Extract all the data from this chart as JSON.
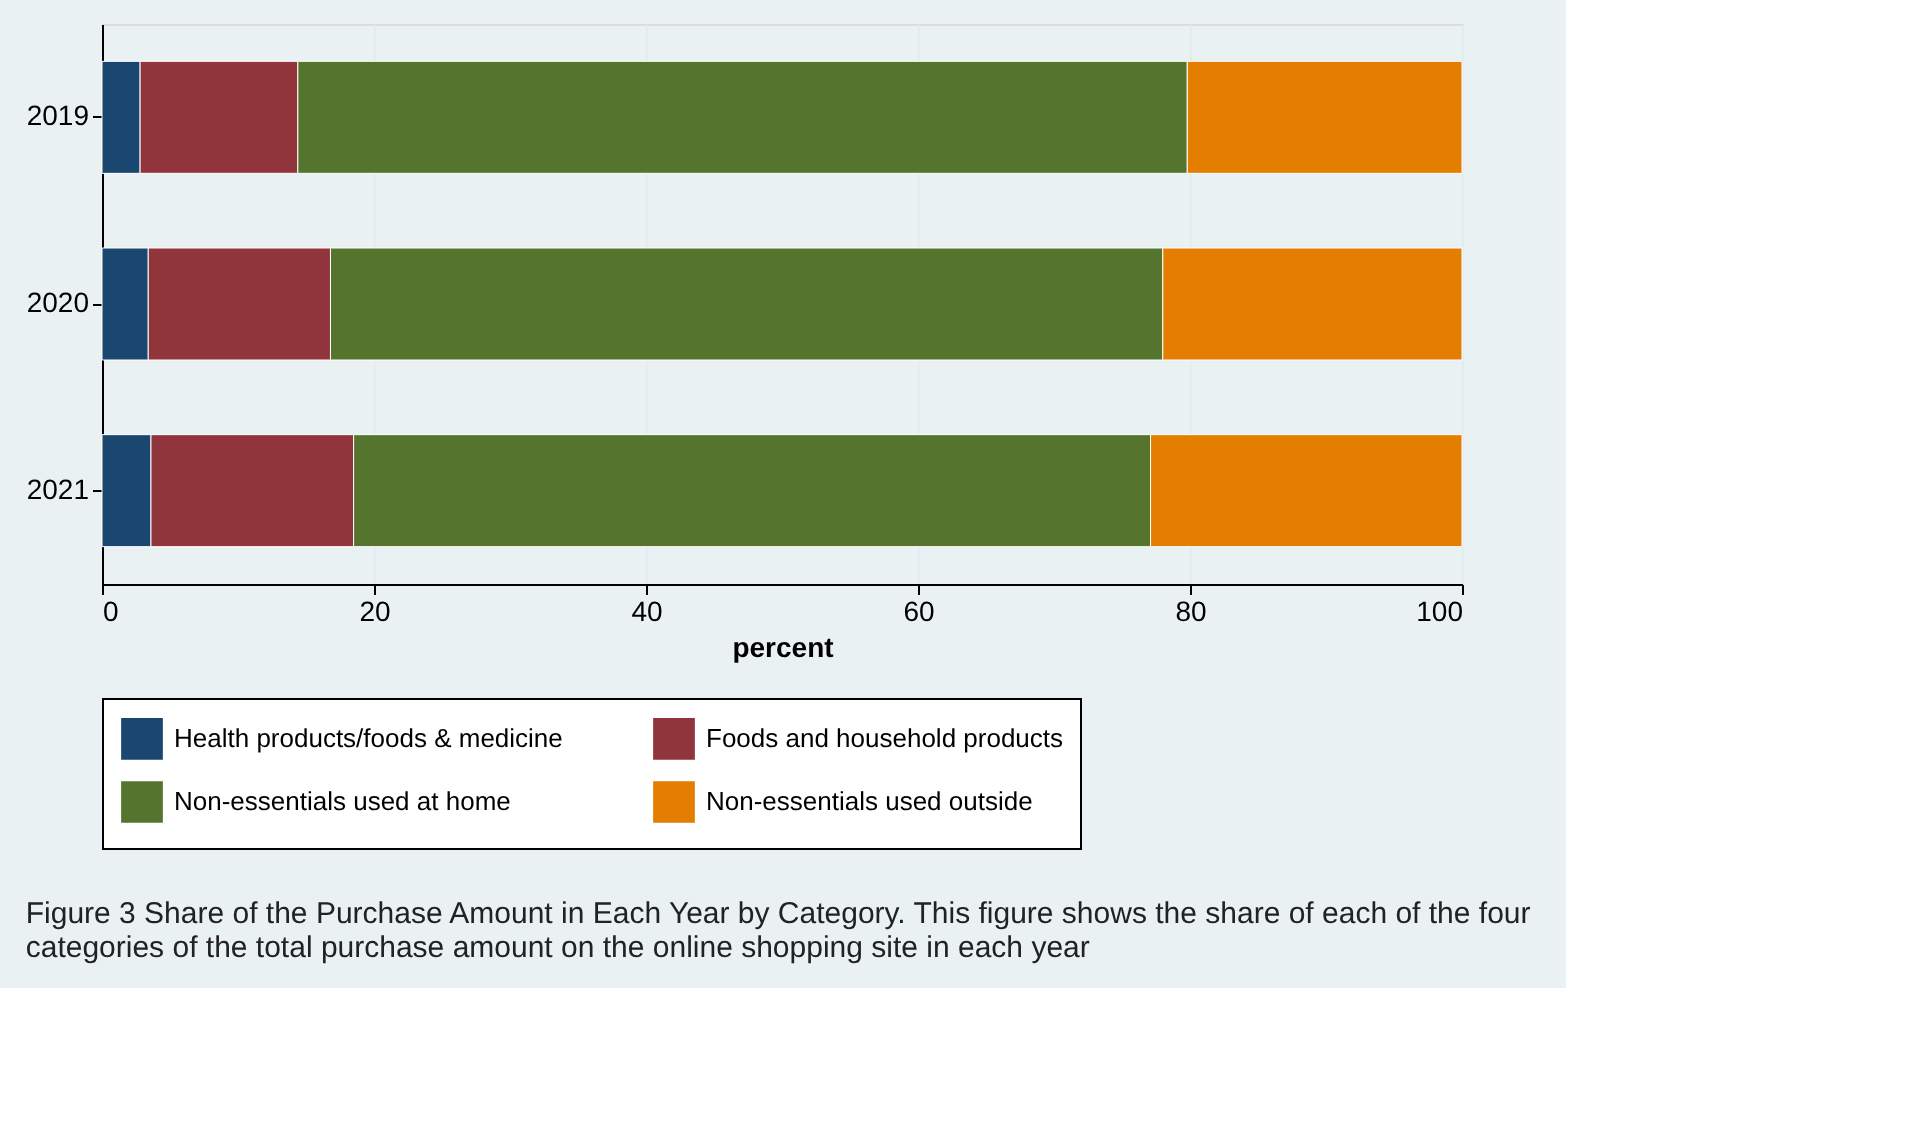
{
  "chart_data": {
    "type": "bar",
    "orientation": "horizontal",
    "stacked": true,
    "categories": [
      "2019",
      "2020",
      "2021"
    ],
    "series": [
      {
        "name": "Health products/foods & medicine",
        "color": "#1a476f",
        "values": [
          2.8,
          3.4,
          3.6
        ]
      },
      {
        "name": "Foods and household products",
        "color": "#90353b",
        "values": [
          11.6,
          13.4,
          14.9
        ]
      },
      {
        "name": "Non-essentials used at home",
        "color": "#55752f",
        "values": [
          65.4,
          61.2,
          58.6
        ]
      },
      {
        "name": "Non-essentials used outside",
        "color": "#e37e00",
        "values": [
          20.2,
          22.0,
          22.9
        ]
      }
    ],
    "xlabel": "percent",
    "xlim": [
      0,
      100
    ],
    "xticks": [
      0,
      20,
      40,
      60,
      80,
      100
    ],
    "grid": "x",
    "legend": "bottom",
    "annotations": [
      "Figure 3  Share of the Purchase Amount in Each Year by Category. This figure shows the share of each of the four categories of the total purchase amount on the online shopping site in each year"
    ]
  }
}
